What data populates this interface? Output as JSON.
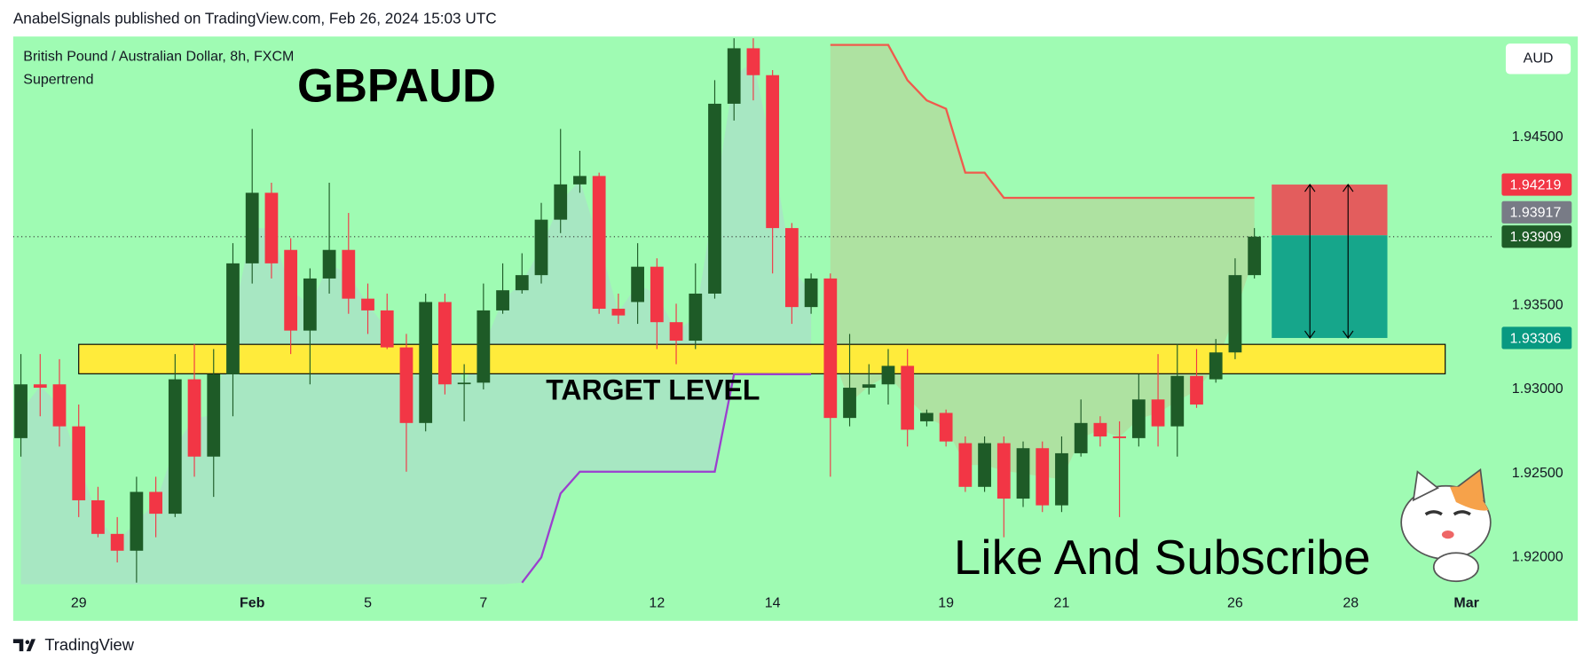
{
  "header": {
    "text": "AnabelSignals published on TradingView.com, Feb 26, 2024 15:03 UTC"
  },
  "chart_data": {
    "type": "candlestick",
    "title": "GBPAUD",
    "symbol": "British Pound / Australian Dollar, 8h, FXCM",
    "indicator": "Supertrend",
    "currency": "AUD",
    "x": [
      0,
      1,
      2,
      3,
      4,
      5,
      6,
      7,
      8,
      9,
      10,
      11,
      12,
      13,
      14,
      15,
      16,
      17,
      18,
      19,
      20,
      21,
      22,
      23,
      24,
      25,
      26,
      27,
      28,
      29,
      30,
      31,
      32,
      33,
      34,
      35,
      36,
      37,
      38,
      39,
      40,
      41,
      42,
      43,
      44,
      45,
      46,
      47,
      48,
      49,
      50,
      51,
      52,
      53,
      54,
      55,
      56,
      57,
      58,
      59,
      60,
      61,
      62,
      63,
      64
    ],
    "open": [
      1.9271,
      1.9303,
      1.9303,
      1.9278,
      1.9234,
      1.9214,
      1.9204,
      1.9239,
      1.9226,
      1.9306,
      1.926,
      1.9309,
      1.9375,
      1.9417,
      1.9383,
      1.9335,
      1.9366,
      1.9383,
      1.9354,
      1.9347,
      1.9325,
      1.928,
      1.9352,
      1.9304,
      1.9304,
      1.9347,
      1.9359,
      1.9368,
      1.9401,
      1.9422,
      1.9427,
      1.9348,
      1.9352,
      1.9373,
      1.934,
      1.9329,
      1.9357,
      1.947,
      1.9503,
      1.9487,
      1.9396,
      1.9349,
      1.9366,
      1.9283,
      1.9301,
      1.9303,
      1.9314,
      1.9281,
      1.9286,
      1.9268,
      1.9242,
      1.9268,
      1.9235,
      1.9265,
      1.9231,
      1.9262,
      1.928,
      1.9272,
      1.9271,
      1.9294,
      1.9278,
      1.9308,
      1.9306,
      1.9322,
      1.9368
    ],
    "high": [
      1.9321,
      1.9321,
      1.9318,
      1.9291,
      1.9242,
      1.9224,
      1.9248,
      1.9248,
      1.9321,
      1.9327,
      1.9324,
      1.9387,
      1.9455,
      1.9423,
      1.939,
      1.9372,
      1.9423,
      1.9405,
      1.9363,
      1.9357,
      1.9333,
      1.9357,
      1.9357,
      1.9315,
      1.9363,
      1.9375,
      1.9381,
      1.9411,
      1.9455,
      1.9442,
      1.9429,
      1.9357,
      1.9387,
      1.9378,
      1.9351,
      1.9375,
      1.9484,
      1.9509,
      1.9509,
      1.949,
      1.9399,
      1.9369,
      1.9369,
      1.9333,
      1.9315,
      1.9324,
      1.9324,
      1.9288,
      1.9288,
      1.9272,
      1.9272,
      1.9272,
      1.9269,
      1.9269,
      1.9272,
      1.9294,
      1.9284,
      1.9281,
      1.9309,
      1.9321,
      1.9327,
      1.9324,
      1.933,
      1.9378,
      1.9396
    ],
    "low": [
      1.926,
      1.9284,
      1.9266,
      1.9224,
      1.9212,
      1.9197,
      1.9185,
      1.9212,
      1.9224,
      1.9248,
      1.9236,
      1.9284,
      1.9363,
      1.9366,
      1.9321,
      1.9303,
      1.9357,
      1.9345,
      1.9333,
      1.9324,
      1.9251,
      1.9275,
      1.9297,
      1.9281,
      1.93,
      1.9345,
      1.9357,
      1.9363,
      1.9393,
      1.9417,
      1.9345,
      1.9339,
      1.9339,
      1.9324,
      1.9315,
      1.9324,
      1.9354,
      1.946,
      1.9472,
      1.9369,
      1.9339,
      1.9345,
      1.9248,
      1.9278,
      1.9297,
      1.9291,
      1.9266,
      1.9278,
      1.9266,
      1.9239,
      1.9239,
      1.9212,
      1.923,
      1.9227,
      1.9227,
      1.926,
      1.9266,
      1.9224,
      1.9266,
      1.9266,
      1.926,
      1.9289,
      1.9304,
      1.9318,
      1.9366
    ],
    "close": [
      1.9303,
      1.9301,
      1.9278,
      1.9234,
      1.9214,
      1.9204,
      1.9239,
      1.9226,
      1.9306,
      1.926,
      1.9309,
      1.9375,
      1.9417,
      1.9375,
      1.9335,
      1.9366,
      1.9383,
      1.9354,
      1.9347,
      1.9325,
      1.928,
      1.9352,
      1.9303,
      1.9304,
      1.9347,
      1.9359,
      1.9368,
      1.9401,
      1.9422,
      1.9427,
      1.9348,
      1.9344,
      1.9373,
      1.934,
      1.9329,
      1.9357,
      1.947,
      1.9503,
      1.9487,
      1.9396,
      1.9349,
      1.9366,
      1.9283,
      1.9301,
      1.9303,
      1.9314,
      1.9276,
      1.9286,
      1.9269,
      1.9242,
      1.9268,
      1.9235,
      1.9265,
      1.9231,
      1.9262,
      1.928,
      1.9272,
      1.9271,
      1.9294,
      1.9278,
      1.9308,
      1.9291,
      1.9322,
      1.9368,
      1.93909
    ],
    "up_color": "#1e5b27",
    "down_color": "#f23645",
    "supertrend": {
      "up": [
        null,
        null,
        null,
        null,
        null,
        null,
        null,
        null,
        null,
        null,
        null,
        null,
        null,
        null,
        null,
        null,
        null,
        null,
        null,
        null,
        null,
        null,
        null,
        null,
        null,
        null,
        1.9185,
        1.92,
        1.9238,
        1.9251,
        1.9251,
        1.9251,
        1.9251,
        1.9251,
        1.9251,
        1.9251,
        1.9251,
        1.9309,
        1.9309,
        1.9309,
        1.9309,
        1.9309,
        null,
        null,
        null,
        null,
        null,
        null,
        null,
        null,
        null,
        null,
        null,
        null,
        null,
        null,
        null,
        null,
        null,
        null,
        null,
        null,
        null,
        null,
        null
      ],
      "down": [
        null,
        null,
        null,
        null,
        null,
        null,
        null,
        null,
        null,
        null,
        null,
        null,
        null,
        null,
        null,
        null,
        null,
        null,
        null,
        null,
        null,
        null,
        null,
        null,
        null,
        null,
        null,
        null,
        null,
        null,
        null,
        null,
        null,
        null,
        null,
        null,
        null,
        null,
        null,
        null,
        null,
        null,
        1.9505,
        1.9505,
        1.9505,
        1.9505,
        1.9484,
        1.9472,
        1.9467,
        1.9429,
        1.9429,
        1.9414,
        1.9414,
        1.9414,
        1.9414,
        1.9414,
        1.9414,
        1.9414,
        1.9414,
        1.9414,
        1.9414,
        1.9414,
        1.9414,
        1.9414,
        1.9414
      ],
      "up_color": "#9b3fcf",
      "down_color": "#f05a4c",
      "up_fill": "#a8e3c4",
      "down_fill": "#b0dd9e"
    },
    "xlim": [
      -0.4,
      76.2
    ],
    "xticks": [
      {
        "value": 3,
        "label": "29"
      },
      {
        "value": 12,
        "label": "Feb"
      },
      {
        "value": 18,
        "label": "5"
      },
      {
        "value": 24,
        "label": "7"
      },
      {
        "value": 33,
        "label": "12"
      },
      {
        "value": 39,
        "label": "14"
      },
      {
        "value": 48,
        "label": "19"
      },
      {
        "value": 54,
        "label": "21"
      },
      {
        "value": 63,
        "label": "26"
      },
      {
        "value": 69,
        "label": "28"
      },
      {
        "value": 75,
        "label": "Mar"
      }
    ],
    "ylim": [
      1.9184,
      1.951
    ],
    "yticks": [
      {
        "value": 1.945,
        "label": "1.94500"
      },
      {
        "value": 1.935,
        "label": "1.93500"
      },
      {
        "value": 1.93,
        "label": "1.93000"
      },
      {
        "value": 1.925,
        "label": "1.92500"
      },
      {
        "value": 1.92,
        "label": "1.92000"
      }
    ],
    "zone": {
      "label": "TARGET LEVEL",
      "low": 1.93093,
      "high": 1.93268,
      "x": [
        3,
        73.9
      ],
      "color": "#ffeb3b"
    },
    "position": {
      "stop": 1.94219,
      "entry": 1.93917,
      "target": 1.93306,
      "x": [
        64.9,
        70.9
      ],
      "stop_color": "#f23645",
      "entry_color": "#787b86",
      "target_color": "#089981",
      "stop_fill": "#e35d5d",
      "target_fill": "#16a68b"
    },
    "last_price": 1.93909,
    "last_price_color": "#1e5b27",
    "annotation": "Like And Subscribe"
  },
  "footer": {
    "brand": "TradingView"
  }
}
